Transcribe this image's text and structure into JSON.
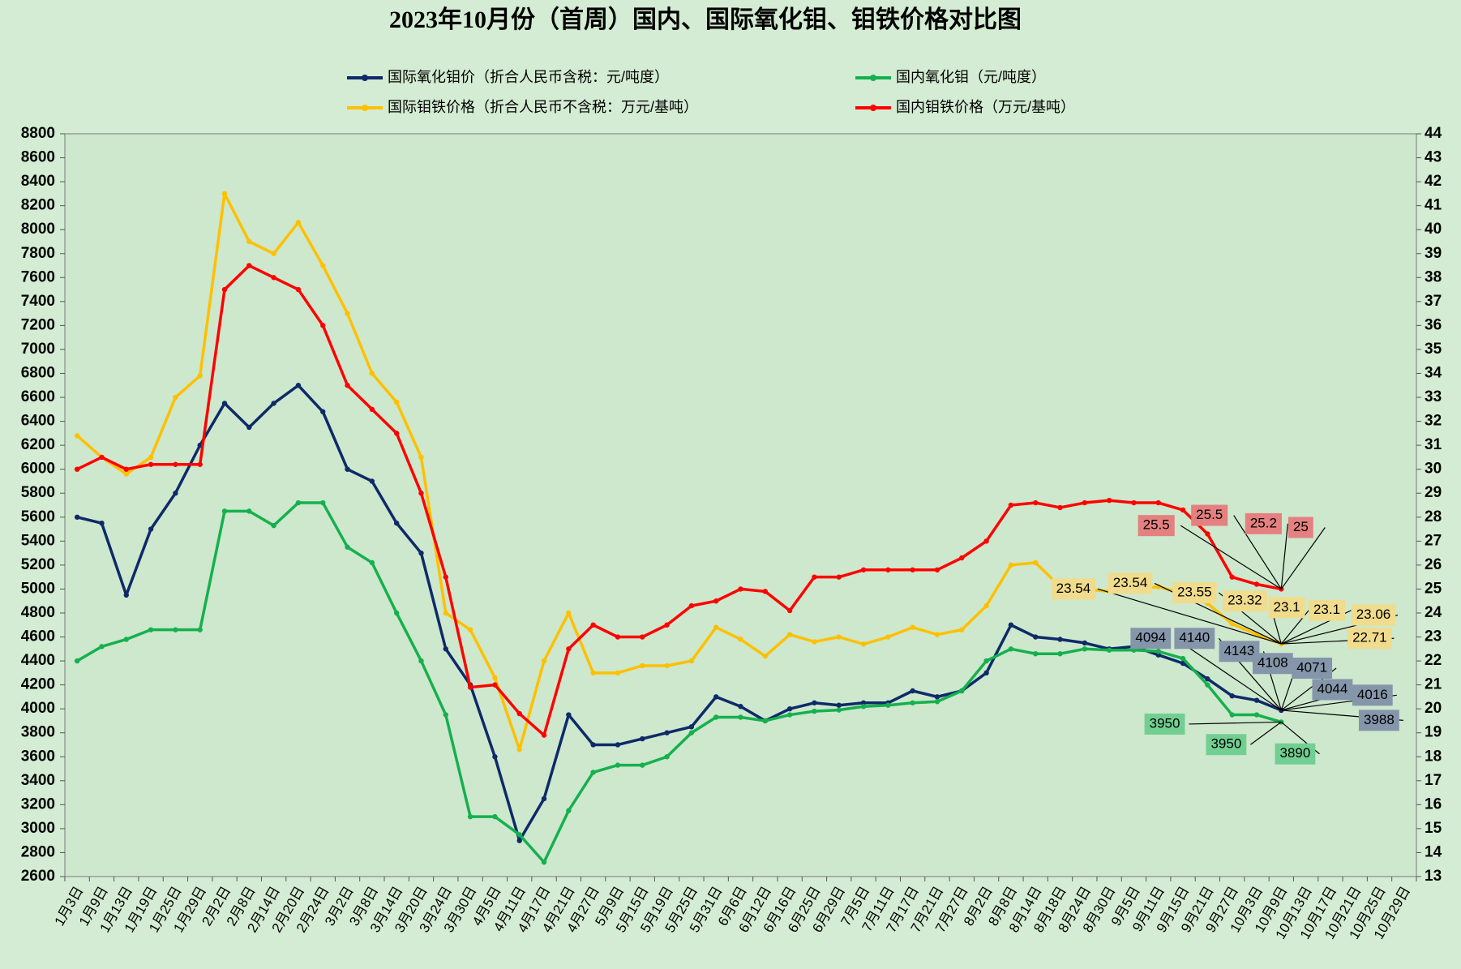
{
  "chart_data": {
    "type": "line",
    "title": "2023年10月份（首周）国内、国际氧化钼、钼铁价格对比图",
    "categories": [
      "1月3日",
      "1月9日",
      "1月13日",
      "1月19日",
      "1月25日",
      "1月29日",
      "2月2日",
      "2月8日",
      "2月14日",
      "2月20日",
      "2月24日",
      "3月2日",
      "3月8日",
      "3月14日",
      "3月20日",
      "3月24日",
      "3月30日",
      "4月5日",
      "4月11日",
      "4月17日",
      "4月21日",
      "4月27日",
      "5月9日",
      "5月15日",
      "5月19日",
      "5月25日",
      "5月31日",
      "6月6日",
      "6月12日",
      "6月16日",
      "6月25日",
      "6月29日",
      "7月5日",
      "7月11日",
      "7月17日",
      "7月21日",
      "7月27日",
      "8月2日",
      "8月8日",
      "8月14日",
      "8月18日",
      "8月24日",
      "8月30日",
      "9月5日",
      "9月11日",
      "9月15日",
      "9月21日",
      "9月27日",
      "10月3日",
      "10月9日",
      "10月13日",
      "10月17日",
      "10月21日",
      "10月25日",
      "10月29日"
    ],
    "series": [
      {
        "name": "国际氧化钼价（折合人民币含税：元/吨度）",
        "color": "#0e2a68",
        "label_color": "#8596ab",
        "values": [
          5600,
          5550,
          4950,
          5500,
          5800,
          6200,
          6550,
          6350,
          6550,
          6700,
          6480,
          6000,
          5900,
          5550,
          5300,
          4500,
          4200,
          3600,
          2900,
          3250,
          3950,
          3700,
          3700,
          3750,
          3800,
          3850,
          4100,
          4020,
          3900,
          4000,
          4050,
          4030,
          4050,
          4050,
          4150,
          4100,
          4150,
          4300,
          4700,
          4600,
          4580,
          4550,
          4500,
          4520,
          4450,
          4380,
          4250,
          4108,
          4071,
          3988,
          null,
          null,
          null,
          null,
          null
        ],
        "data_labels": [
          4094,
          4140,
          4143,
          4108,
          4071,
          4044,
          4016,
          3988
        ]
      },
      {
        "name": "国内氧化钼（元/吨度）",
        "color": "#16b04e",
        "label_color": "#72cf92",
        "values": [
          4400,
          4520,
          4580,
          4660,
          4660,
          4660,
          5650,
          5650,
          5530,
          5720,
          5720,
          5350,
          5220,
          4800,
          4400,
          3950,
          3100,
          3100,
          2950,
          2720,
          3150,
          3470,
          3530,
          3530,
          3600,
          3800,
          3930,
          3930,
          3900,
          3950,
          3980,
          3990,
          4020,
          4030,
          4050,
          4060,
          4150,
          4400,
          4500,
          4460,
          4460,
          4500,
          4490,
          4490,
          4480,
          4420,
          4200,
          3950,
          3950,
          3890,
          null,
          null,
          null,
          null,
          null
        ],
        "data_labels": [
          3950,
          3950,
          3890
        ]
      },
      {
        "name": "国际钼铁价格（折合人民币不含税：万元/基吨）",
        "color": "#ffc000",
        "label_color": "#f0dc8c",
        "axis": "y2",
        "values": [
          31.4,
          30.5,
          29.8,
          30.5,
          33.0,
          33.9,
          41.5,
          39.5,
          39.0,
          40.3,
          38.5,
          36.5,
          34.0,
          32.8,
          30.5,
          24.0,
          23.3,
          21.3,
          18.3,
          22.0,
          24.0,
          21.5,
          21.5,
          21.8,
          21.8,
          22.0,
          23.4,
          22.9,
          22.2,
          23.1,
          22.8,
          23.0,
          22.7,
          23.0,
          23.4,
          23.1,
          23.3,
          24.3,
          26.0,
          26.1,
          25.1,
          25.0,
          24.9,
          25.0,
          25.1,
          24.8,
          24.4,
          23.55,
          23.1,
          22.71,
          null,
          null,
          null,
          null,
          null
        ],
        "data_labels": [
          23.54,
          23.54,
          23.55,
          23.32,
          23.1,
          23.1,
          23.06,
          22.71
        ]
      },
      {
        "name": "国内钼铁价格（万元/基吨）",
        "color": "#ff0000",
        "label_color": "#e58080",
        "axis": "y2",
        "values": [
          30.0,
          30.5,
          30.0,
          30.2,
          30.2,
          30.2,
          37.5,
          38.5,
          38.0,
          37.5,
          36.0,
          33.5,
          32.5,
          31.5,
          29.0,
          25.5,
          20.9,
          21.0,
          19.8,
          18.9,
          22.5,
          23.5,
          23.0,
          23.0,
          23.5,
          24.3,
          24.5,
          25.0,
          24.9,
          24.1,
          25.5,
          25.5,
          25.8,
          25.8,
          25.8,
          25.8,
          26.3,
          27.0,
          28.5,
          28.6,
          28.4,
          28.6,
          28.7,
          28.6,
          28.6,
          28.3,
          27.3,
          25.5,
          25.2,
          25,
          null,
          null,
          null,
          null,
          null
        ],
        "data_labels": [
          25.5,
          25.5,
          25.2,
          25
        ]
      }
    ],
    "ylim": [
      2600,
      8800
    ],
    "yticks": [
      2600,
      2800,
      3000,
      3200,
      3400,
      3600,
      3800,
      4000,
      4200,
      4400,
      4600,
      4800,
      5000,
      5200,
      5400,
      5600,
      5800,
      6000,
      6200,
      6400,
      6600,
      6800,
      7000,
      7200,
      7400,
      7600,
      7800,
      8000,
      8200,
      8400,
      8600,
      8800
    ],
    "y2lim": [
      13,
      44
    ],
    "y2ticks": [
      13,
      14,
      15,
      16,
      17,
      18,
      19,
      20,
      21,
      22,
      23,
      24,
      25,
      26,
      27,
      28,
      29,
      30,
      31,
      32,
      33,
      34,
      35,
      36,
      37,
      38,
      39,
      40,
      41,
      42,
      43,
      44
    ],
    "grid": false
  }
}
